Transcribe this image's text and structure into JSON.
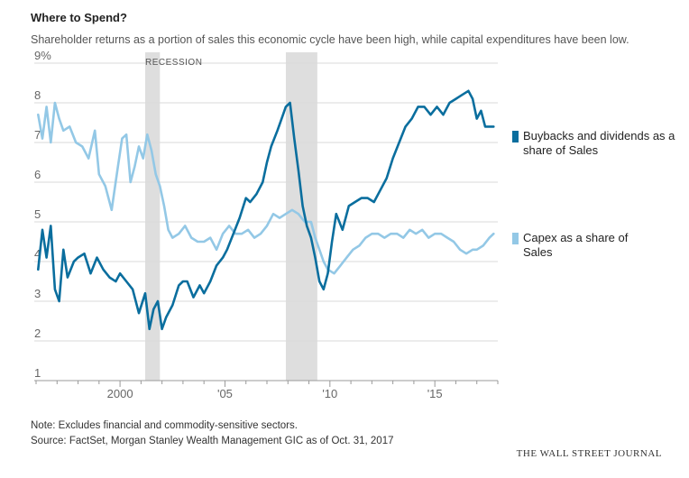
{
  "title": "Where to Spend?",
  "subtitle": "Shareholder returns as a portion of sales this economic cycle have been high, while capital expenditures have been low.",
  "recession_label": "RECESSION",
  "note": "Note: Excludes financial and commodity-sensitive sectors.",
  "source": "Source: FactSet, Morgan Stanley Wealth Management GIC as of Oct. 31, 2017",
  "brand": "THE WALL STREET JOURNAL",
  "chart_data": {
    "type": "line",
    "title": "Where to Spend?",
    "xlabel": "",
    "ylabel": "",
    "xlim": [
      1996.0,
      2018.0
    ],
    "ylim": [
      1,
      9
    ],
    "y_ticks": [
      1,
      2,
      3,
      4,
      5,
      6,
      7,
      8,
      9
    ],
    "y_tick_labels": [
      "1",
      "2",
      "3",
      "4",
      "5",
      "6",
      "7",
      "8",
      "9%"
    ],
    "x_ticks": [
      2000,
      2005,
      2010,
      2015
    ],
    "x_tick_labels": [
      "2000",
      "'05",
      "'10",
      "'15"
    ],
    "grid": true,
    "legend": "right",
    "recessions": [
      [
        2001.2,
        2001.9
      ],
      [
        2007.9,
        2009.4
      ]
    ],
    "series": [
      {
        "name": "Buybacks and dividends as a share of Sales",
        "color": "#0a6e9e",
        "x": [
          1996.1,
          1996.3,
          1996.5,
          1996.7,
          1996.9,
          1997.1,
          1997.3,
          1997.5,
          1997.8,
          1998.0,
          1998.3,
          1998.6,
          1998.9,
          1999.2,
          1999.5,
          1999.8,
          2000.0,
          2000.3,
          2000.6,
          2000.9,
          2001.2,
          2001.4,
          2001.6,
          2001.8,
          2002.0,
          2002.2,
          2002.5,
          2002.8,
          2003.0,
          2003.2,
          2003.5,
          2003.8,
          2004.0,
          2004.3,
          2004.6,
          2004.9,
          2005.1,
          2005.4,
          2005.7,
          2006.0,
          2006.2,
          2006.5,
          2006.8,
          2007.0,
          2007.2,
          2007.5,
          2007.7,
          2007.9,
          2008.1,
          2008.3,
          2008.5,
          2008.7,
          2008.9,
          2009.1,
          2009.3,
          2009.5,
          2009.7,
          2009.9,
          2010.1,
          2010.3,
          2010.6,
          2010.9,
          2011.2,
          2011.5,
          2011.8,
          2012.1,
          2012.4,
          2012.7,
          2013.0,
          2013.3,
          2013.6,
          2013.9,
          2014.2,
          2014.5,
          2014.8,
          2015.1,
          2015.4,
          2015.7,
          2016.0,
          2016.3,
          2016.6,
          2016.8,
          2017.0,
          2017.2,
          2017.4,
          2017.6,
          2017.8
        ],
        "values": [
          3.8,
          4.8,
          4.1,
          4.9,
          3.3,
          3.0,
          4.3,
          3.6,
          4.0,
          4.1,
          4.2,
          3.7,
          4.1,
          3.8,
          3.6,
          3.5,
          3.7,
          3.5,
          3.3,
          2.7,
          3.2,
          2.3,
          2.8,
          3.0,
          2.3,
          2.6,
          2.9,
          3.4,
          3.5,
          3.5,
          3.1,
          3.4,
          3.2,
          3.5,
          3.9,
          4.1,
          4.3,
          4.7,
          5.1,
          5.6,
          5.5,
          5.7,
          6.0,
          6.5,
          6.9,
          7.3,
          7.6,
          7.9,
          8.0,
          7.1,
          6.3,
          5.4,
          4.9,
          4.6,
          4.1,
          3.5,
          3.3,
          3.7,
          4.5,
          5.2,
          4.8,
          5.4,
          5.5,
          5.6,
          5.6,
          5.5,
          5.8,
          6.1,
          6.6,
          7.0,
          7.4,
          7.6,
          7.9,
          7.9,
          7.7,
          7.9,
          7.7,
          8.0,
          8.1,
          8.2,
          8.3,
          8.1,
          7.6,
          7.8,
          7.4,
          7.4,
          7.4
        ]
      },
      {
        "name": "Capex as a share of Sales",
        "color": "#93c8e6",
        "x": [
          1996.1,
          1996.3,
          1996.5,
          1996.7,
          1996.9,
          1997.1,
          1997.3,
          1997.6,
          1997.9,
          1998.2,
          1998.5,
          1998.8,
          1999.0,
          1999.3,
          1999.6,
          1999.9,
          2000.1,
          2000.3,
          2000.5,
          2000.7,
          2000.9,
          2001.1,
          2001.3,
          2001.5,
          2001.7,
          2001.9,
          2002.1,
          2002.3,
          2002.5,
          2002.8,
          2003.1,
          2003.4,
          2003.7,
          2004.0,
          2004.3,
          2004.6,
          2004.9,
          2005.2,
          2005.5,
          2005.8,
          2006.1,
          2006.4,
          2006.7,
          2007.0,
          2007.3,
          2007.6,
          2007.9,
          2008.2,
          2008.5,
          2008.8,
          2009.1,
          2009.3,
          2009.5,
          2009.7,
          2009.9,
          2010.2,
          2010.5,
          2010.8,
          2011.1,
          2011.4,
          2011.7,
          2012.0,
          2012.3,
          2012.6,
          2012.9,
          2013.2,
          2013.5,
          2013.8,
          2014.1,
          2014.4,
          2014.7,
          2015.0,
          2015.3,
          2015.6,
          2015.9,
          2016.2,
          2016.5,
          2016.8,
          2017.0,
          2017.3,
          2017.6,
          2017.8
        ],
        "values": [
          7.7,
          7.1,
          7.9,
          7.0,
          8.0,
          7.6,
          7.3,
          7.4,
          7.0,
          6.9,
          6.6,
          7.3,
          6.2,
          5.9,
          5.3,
          6.4,
          7.1,
          7.2,
          6.0,
          6.4,
          6.9,
          6.6,
          7.2,
          6.8,
          6.2,
          5.9,
          5.4,
          4.8,
          4.6,
          4.7,
          4.9,
          4.6,
          4.5,
          4.5,
          4.6,
          4.3,
          4.7,
          4.9,
          4.7,
          4.7,
          4.8,
          4.6,
          4.7,
          4.9,
          5.2,
          5.1,
          5.2,
          5.3,
          5.2,
          5.0,
          5.0,
          4.6,
          4.3,
          4.0,
          3.8,
          3.7,
          3.9,
          4.1,
          4.3,
          4.4,
          4.6,
          4.7,
          4.7,
          4.6,
          4.7,
          4.7,
          4.6,
          4.8,
          4.7,
          4.8,
          4.6,
          4.7,
          4.7,
          4.6,
          4.5,
          4.3,
          4.2,
          4.3,
          4.3,
          4.4,
          4.6,
          4.7
        ]
      }
    ]
  }
}
